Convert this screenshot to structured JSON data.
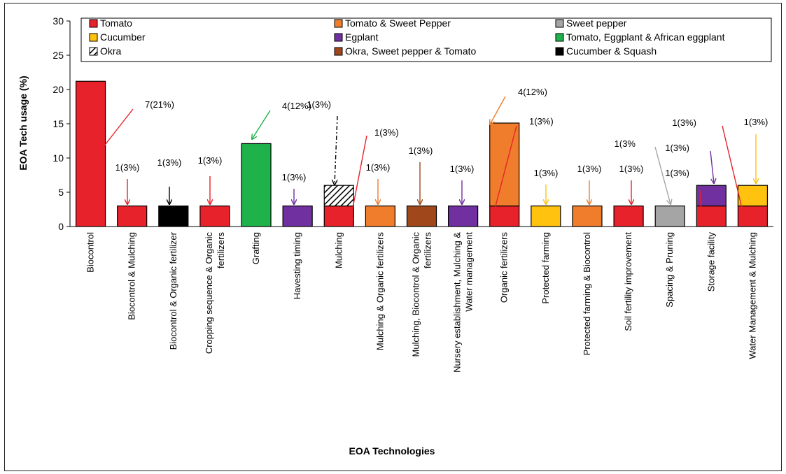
{
  "chart_data": {
    "type": "bar",
    "stacked": true,
    "xlabel": "EOA Technologies",
    "ylabel": "EOA Tech usage (%)",
    "ylim": [
      0,
      30
    ],
    "yticks": [
      0,
      5,
      10,
      15,
      20,
      25,
      30
    ],
    "grid": false,
    "legend_position": "top",
    "categories": [
      "Biocontrol",
      "Biocontrol & Mulching",
      "Biocontrol & Organic fertilizer",
      "Cropping sequence & Organic fertilizers",
      "Grafting",
      "Havesting timing",
      "Mulching",
      "Mulching & Organic fertilizers",
      "Mulching, Biocontrol & Organic fertilizers",
      "Nursery establishment, Mulching & Water management",
      "Organic fertilizers",
      "Protected farming",
      "Protected farming & Biocontrol",
      "Soil fertility improvement",
      "Spacing & Pruning",
      "Storage facility",
      "Water Management & Mulching"
    ],
    "series": [
      {
        "name": "Tomato",
        "color": "#e8222a",
        "values": [
          21.2,
          3,
          0,
          3,
          0,
          0,
          3,
          0,
          0,
          0,
          3,
          0,
          0,
          3,
          0,
          3,
          3
        ]
      },
      {
        "name": "Tomato & Sweet Pepper",
        "color": "#ef7d2c",
        "values": [
          0,
          0,
          0,
          0,
          0,
          0,
          0,
          3,
          0,
          0,
          12.1,
          0,
          3,
          0,
          0,
          0,
          0
        ]
      },
      {
        "name": "Sweet pepper",
        "color": "#a5a5a5",
        "values": [
          0,
          0,
          0,
          0,
          0,
          0,
          0,
          0,
          0,
          0,
          0,
          0,
          0,
          0,
          3,
          0,
          0
        ]
      },
      {
        "name": "Cucumber",
        "color": "#ffc20e",
        "values": [
          0,
          0,
          0,
          0,
          0,
          0,
          0,
          0,
          0,
          0,
          0,
          3,
          0,
          0,
          0,
          0,
          3
        ]
      },
      {
        "name": "Egplant",
        "color": "#7030a0",
        "values": [
          0,
          0,
          0,
          0,
          0,
          3,
          0,
          0,
          0,
          3,
          0,
          0,
          0,
          0,
          0,
          3,
          0
        ]
      },
      {
        "name": "Tomato, Eggplant & African eggplant",
        "color": "#1fb14a",
        "values": [
          0,
          0,
          0,
          0,
          12.1,
          0,
          0,
          0,
          0,
          0,
          0,
          0,
          0,
          0,
          0,
          0,
          0
        ]
      },
      {
        "name": "Okra",
        "color": "hatch",
        "values": [
          0,
          0,
          0,
          0,
          0,
          0,
          3,
          0,
          0,
          0,
          0,
          0,
          0,
          0,
          0,
          0,
          0
        ]
      },
      {
        "name": "Okra, Sweet pepper & Tomato",
        "color": "#a0481b",
        "values": [
          0,
          0,
          0,
          0,
          0,
          0,
          0,
          0,
          3,
          0,
          0,
          0,
          0,
          0,
          0,
          0,
          0
        ]
      },
      {
        "name": "Cucumber & Squash",
        "color": "#000000",
        "values": [
          0,
          0,
          3,
          0,
          0,
          0,
          0,
          0,
          0,
          0,
          0,
          0,
          0,
          0,
          0,
          0,
          0
        ]
      }
    ],
    "annotations": [
      {
        "text": "7(21%)",
        "category": 0,
        "color": "#e8222a"
      },
      {
        "text": "1(3%)",
        "category": 1,
        "color": "#e8222a"
      },
      {
        "text": "1(3%)",
        "category": 2,
        "color": "#000000"
      },
      {
        "text": "1(3%)",
        "category": 3,
        "color": "#e8222a"
      },
      {
        "text": "4(12%)",
        "category": 4,
        "color": "#1fb14a"
      },
      {
        "text": "1(3%)",
        "category": 5,
        "color": "#7030a0"
      },
      {
        "text": "1(3%)",
        "category": 6,
        "color": "#000000"
      },
      {
        "text": "1(3%)",
        "category": 6,
        "color": "#e8222a"
      },
      {
        "text": "1(3%)",
        "category": 7,
        "color": "#ef7d2c"
      },
      {
        "text": "1(3%)",
        "category": 8,
        "color": "#a0481b"
      },
      {
        "text": "1(3%)",
        "category": 9,
        "color": "#7030a0"
      },
      {
        "text": "4(12%)",
        "category": 10,
        "color": "#ef7d2c"
      },
      {
        "text": "1(3%)",
        "category": 10,
        "color": "#e8222a"
      },
      {
        "text": "1(3%)",
        "category": 11,
        "color": "#ffc20e"
      },
      {
        "text": "1(3%)",
        "category": 12,
        "color": "#ef7d2c"
      },
      {
        "text": "1(3%)",
        "category": 13,
        "color": "#e8222a"
      },
      {
        "text": "1(3%",
        "category": 14,
        "color": "#a5a5a5"
      },
      {
        "text": "1(3%)",
        "category": 15,
        "color": "#7030a0"
      },
      {
        "text": "1(3%)",
        "category": 15,
        "color": "#e8222a"
      },
      {
        "text": "1(3%)",
        "category": 16,
        "color": "#e8222a"
      },
      {
        "text": "1(3%)",
        "category": 16,
        "color": "#ffc20e"
      }
    ]
  }
}
